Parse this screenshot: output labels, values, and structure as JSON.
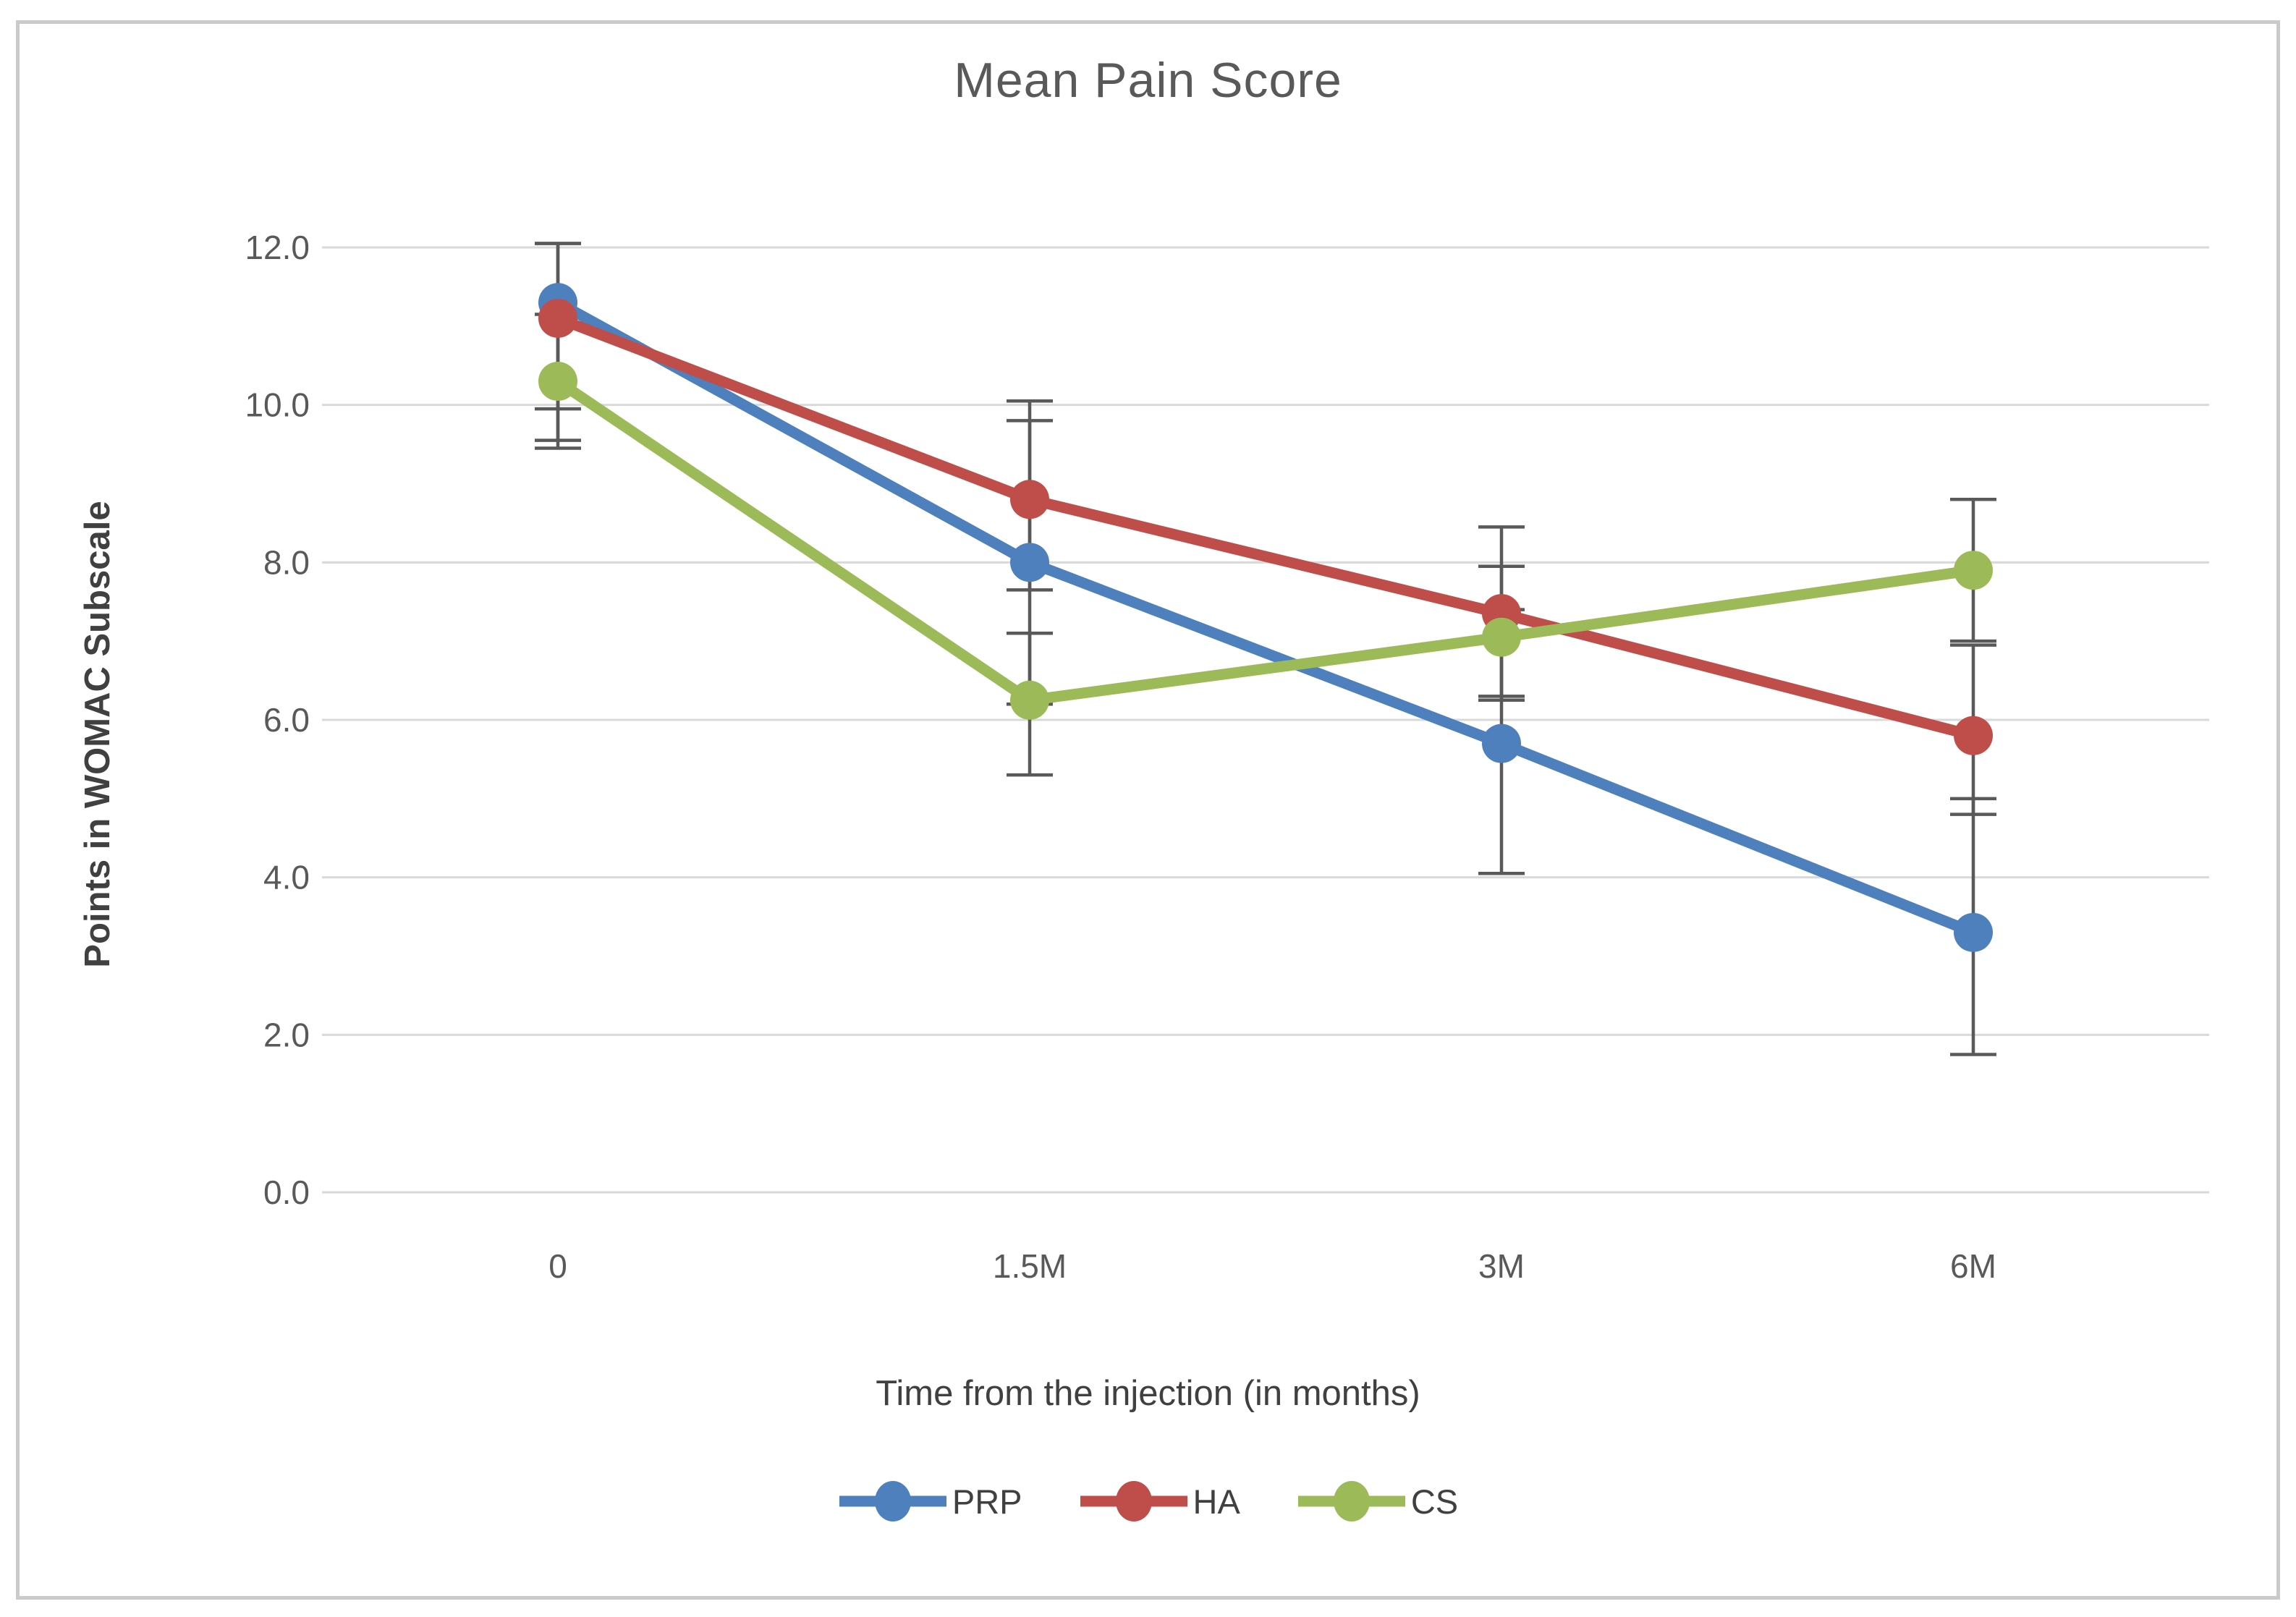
{
  "chart_data": {
    "type": "line",
    "title": "Mean Pain Score",
    "xlabel": "Time from the injection (in months)",
    "ylabel": "Points in WOMAC Subscale",
    "categories": [
      "0",
      "1.5M",
      "3M",
      "6M"
    ],
    "ylim": [
      0,
      12
    ],
    "yticks": [
      12,
      10,
      8,
      6,
      4,
      2,
      0
    ],
    "ytick_labels": [
      "12.0",
      "10.0",
      "8.0",
      "6.0",
      "4.0",
      "2.0",
      "0.0"
    ],
    "grid": true,
    "legend_position": "bottom",
    "error_bars": true,
    "series": [
      {
        "name": "PRP",
        "color": "#4D80BC",
        "values": [
          11.3,
          8.0,
          5.7,
          3.3
        ],
        "error_lo": [
          9.55,
          6.2,
          4.05,
          1.75
        ],
        "error_hi": [
          12.05,
          9.8,
          7.4,
          5.0
        ]
      },
      {
        "name": "HA",
        "color": "#BF4E4B",
        "values": [
          11.1,
          8.8,
          7.35,
          5.8
        ],
        "error_lo": [
          9.95,
          7.65,
          6.3,
          4.8
        ],
        "error_hi": [
          12.05,
          10.05,
          8.45,
          6.95
        ]
      },
      {
        "name": "CS",
        "color": "#9CBB58",
        "values": [
          10.3,
          6.25,
          7.05,
          7.9
        ],
        "error_lo": [
          9.45,
          5.3,
          6.25,
          7.0
        ],
        "error_hi": [
          11.15,
          7.1,
          7.95,
          8.8
        ]
      }
    ],
    "colors": {
      "gridline": "#d9d9d9",
      "error_bar": "#595959",
      "tick_text": "#595959",
      "title_text": "#595959",
      "axis_title_text": "#404040",
      "border": "#cacaca",
      "background": "#ffffff"
    }
  }
}
